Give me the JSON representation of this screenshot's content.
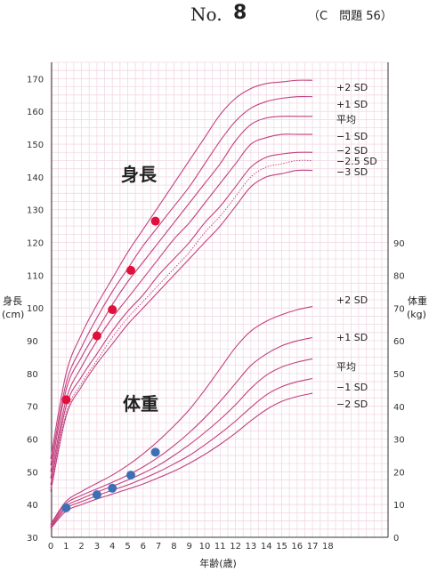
{
  "header": {
    "no_label": "No.",
    "number": "8",
    "question": "（C　問題 56）"
  },
  "chart_data": {
    "type": "line",
    "x_axis": {
      "label": "年齢(歳)",
      "range": [
        0,
        18
      ],
      "ticks": [
        0,
        1,
        2,
        3,
        4,
        5,
        6,
        7,
        8,
        9,
        10,
        11,
        12,
        13,
        14,
        15,
        16,
        17,
        18
      ]
    },
    "y_left": {
      "label": "身長",
      "unit": "(cm)",
      "range": [
        30,
        175
      ],
      "ticks": [
        30,
        40,
        50,
        60,
        70,
        80,
        90,
        100,
        110,
        120,
        130,
        140,
        150,
        160,
        170
      ]
    },
    "y_right": {
      "label": "体重",
      "unit": "(kg)",
      "range": [
        0,
        100
      ],
      "ticks": [
        0,
        10,
        20,
        30,
        40,
        50,
        60,
        70,
        80,
        90
      ]
    },
    "grid": true,
    "height_section_label": "身長",
    "weight_section_label": "体重",
    "height_curves": [
      {
        "label": "+2 SD",
        "axis": "left",
        "style": "solid",
        "x": [
          0,
          1,
          2,
          3,
          4,
          5,
          6,
          7,
          8,
          9,
          10,
          11,
          12,
          13,
          14,
          15,
          16,
          17
        ],
        "y": [
          54,
          80,
          92,
          101,
          109,
          117,
          124,
          131,
          138,
          145,
          152,
          159,
          164,
          167,
          168.5,
          169,
          169.5,
          169.5
        ]
      },
      {
        "label": "+1 SD",
        "axis": "left",
        "style": "solid",
        "x": [
          0,
          1,
          2,
          3,
          4,
          5,
          6,
          7,
          8,
          9,
          10,
          11,
          12,
          13,
          14,
          15,
          16,
          17
        ],
        "y": [
          52,
          77,
          88,
          97,
          105,
          112,
          119,
          125,
          131,
          137,
          144,
          151,
          157,
          161,
          163,
          164,
          164.5,
          164.5
        ]
      },
      {
        "label": "平均",
        "axis": "left",
        "style": "solid",
        "x": [
          0,
          1,
          2,
          3,
          4,
          5,
          6,
          7,
          8,
          9,
          10,
          11,
          12,
          13,
          14,
          15,
          16,
          17
        ],
        "y": [
          50,
          75,
          85,
          93,
          101,
          108,
          114,
          120,
          126,
          132,
          138,
          144,
          151,
          156,
          158,
          158.5,
          158.5,
          158.5
        ]
      },
      {
        "label": "−1 SD",
        "axis": "left",
        "style": "solid",
        "x": [
          0,
          1,
          2,
          3,
          4,
          5,
          6,
          7,
          8,
          9,
          10,
          11,
          12,
          13,
          14,
          15,
          16,
          17
        ],
        "y": [
          48,
          72,
          82,
          90,
          97,
          103,
          109,
          115,
          121,
          126,
          132,
          138,
          144,
          150,
          152,
          153,
          153,
          153
        ]
      },
      {
        "label": "−2 SD",
        "axis": "left",
        "style": "solid",
        "x": [
          0,
          1,
          2,
          3,
          4,
          5,
          6,
          7,
          8,
          9,
          10,
          11,
          12,
          13,
          14,
          15,
          16,
          17
        ],
        "y": [
          46,
          70,
          79,
          86,
          93,
          99,
          104,
          110,
          115,
          120,
          126,
          131,
          137,
          143,
          146,
          147,
          147.5,
          147.5
        ]
      },
      {
        "label": "−2.5 SD",
        "axis": "left",
        "style": "dotted",
        "x": [
          0,
          1,
          2,
          3,
          4,
          5,
          6,
          7,
          8,
          9,
          10,
          11,
          12,
          13,
          14,
          15,
          16,
          17
        ],
        "y": [
          45,
          68,
          77,
          84,
          91,
          97,
          102,
          107,
          112,
          117,
          123,
          128,
          134,
          140,
          143,
          144,
          145,
          145
        ]
      },
      {
        "label": "−3 SD",
        "axis": "left",
        "style": "solid",
        "x": [
          0,
          1,
          2,
          3,
          4,
          5,
          6,
          7,
          8,
          9,
          10,
          11,
          12,
          13,
          14,
          15,
          16,
          17
        ],
        "y": [
          44,
          67,
          76,
          83,
          89,
          95,
          100,
          105,
          110,
          115,
          120,
          125,
          131,
          137,
          140,
          141,
          142,
          142
        ]
      }
    ],
    "weight_curves": [
      {
        "label": "+2 SD",
        "axis": "right",
        "x": [
          0,
          1,
          2,
          3,
          4,
          5,
          6,
          7,
          8,
          9,
          10,
          11,
          12,
          13,
          14,
          15,
          16,
          17
        ],
        "y": [
          4,
          11,
          14,
          16.5,
          19,
          22,
          25.5,
          29.5,
          34,
          39,
          45,
          51.5,
          58,
          63,
          66,
          68,
          69.5,
          70.5
        ]
      },
      {
        "label": "+1 SD",
        "axis": "right",
        "x": [
          0,
          1,
          2,
          3,
          4,
          5,
          6,
          7,
          8,
          9,
          10,
          11,
          12,
          13,
          14,
          15,
          16,
          17
        ],
        "y": [
          3.8,
          10.3,
          12.8,
          14.8,
          16.8,
          19,
          21.5,
          24.5,
          28,
          32,
          36.5,
          41.5,
          47,
          52.5,
          56,
          58.5,
          60,
          61
        ]
      },
      {
        "label": "平均",
        "axis": "right",
        "x": [
          0,
          1,
          2,
          3,
          4,
          5,
          6,
          7,
          8,
          9,
          10,
          11,
          12,
          13,
          14,
          15,
          16,
          17
        ],
        "y": [
          3.3,
          9.5,
          11.8,
          13.8,
          15.6,
          17.5,
          19.6,
          22,
          25,
          28.3,
          32,
          36,
          40.5,
          45.5,
          49.5,
          52,
          53.5,
          54.5
        ]
      },
      {
        "label": "−1 SD",
        "axis": "right",
        "x": [
          0,
          1,
          2,
          3,
          4,
          5,
          6,
          7,
          8,
          9,
          10,
          11,
          12,
          13,
          14,
          15,
          16,
          17
        ],
        "y": [
          3,
          8.8,
          10.9,
          12.7,
          14.4,
          16,
          17.9,
          20,
          22.4,
          25,
          28.2,
          31.7,
          35.5,
          39.7,
          43.5,
          46,
          47.5,
          48.5
        ]
      },
      {
        "label": "−2 SD",
        "axis": "right",
        "x": [
          0,
          1,
          2,
          3,
          4,
          5,
          6,
          7,
          8,
          9,
          10,
          11,
          12,
          13,
          14,
          15,
          16,
          17
        ],
        "y": [
          2.7,
          8,
          10,
          11.7,
          13.2,
          14.7,
          16.3,
          18.2,
          20.2,
          22.6,
          25.3,
          28.4,
          31.8,
          35.6,
          39,
          41.5,
          43,
          44
        ]
      }
    ],
    "height_points": {
      "axis": "left",
      "color": "#e0103a",
      "x": [
        1,
        3,
        4,
        5.2,
        6.8
      ],
      "y": [
        72,
        91.5,
        99.5,
        111.5,
        126.5
      ]
    },
    "weight_points": {
      "axis": "right",
      "color": "#3d6fb6",
      "x": [
        1,
        3,
        4,
        5.2,
        6.8
      ],
      "y": [
        9,
        13,
        15,
        19,
        26
      ]
    },
    "colors": {
      "curve": "#c2407e",
      "grid": "#f2d8e4",
      "axis": "#333333"
    }
  }
}
